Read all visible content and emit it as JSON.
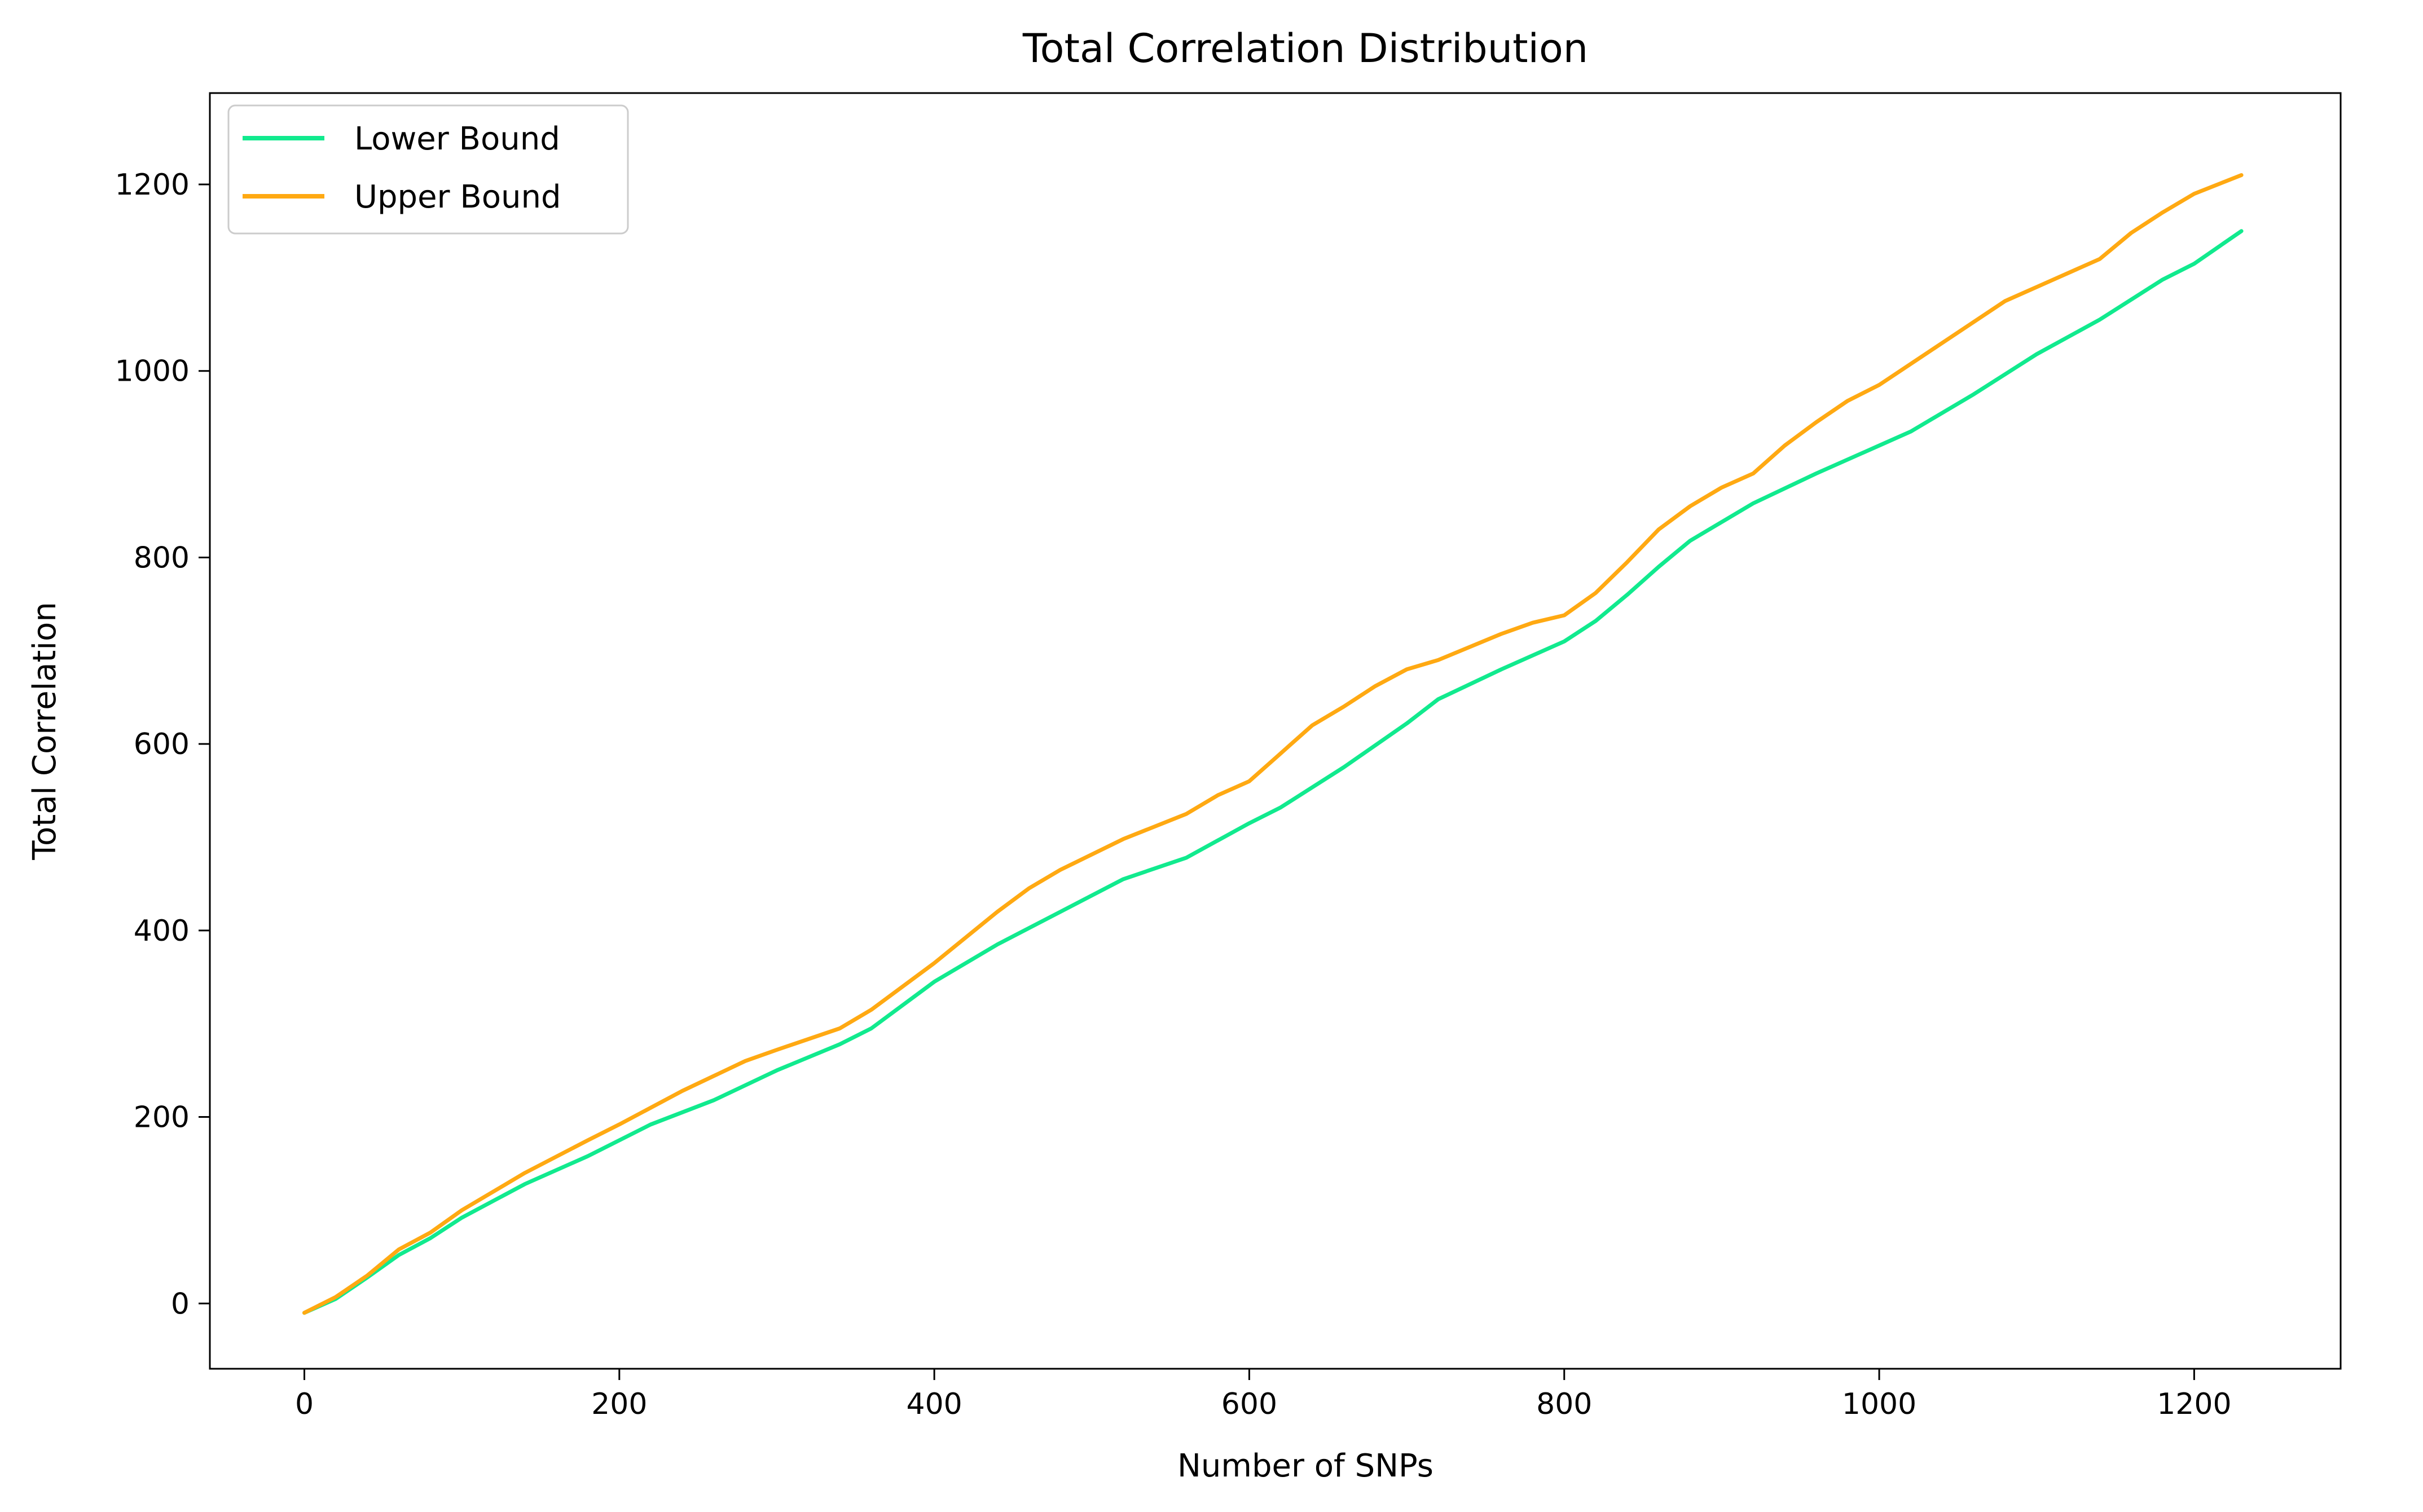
{
  "chart_data": {
    "type": "line",
    "title": "Total Correlation Distribution",
    "xlabel": "Number of SNPs",
    "ylabel": "Total Correlation",
    "xlim": [
      -60,
      1293
    ],
    "ylim": [
      -70,
      1298
    ],
    "xticks": [
      0,
      200,
      400,
      600,
      800,
      1000,
      1200
    ],
    "yticks": [
      0,
      200,
      400,
      600,
      800,
      1000,
      1200
    ],
    "grid": false,
    "legend_position": "top-left",
    "series": [
      {
        "name": "Lower Bound",
        "color": "#11ea8e",
        "x": [
          0,
          20,
          40,
          60,
          80,
          100,
          140,
          180,
          220,
          260,
          300,
          340,
          360,
          400,
          440,
          480,
          520,
          560,
          600,
          620,
          660,
          700,
          720,
          760,
          800,
          820,
          840,
          860,
          880,
          920,
          960,
          1000,
          1020,
          1060,
          1100,
          1140,
          1180,
          1200,
          1230
        ],
        "y": [
          -10,
          5,
          28,
          52,
          70,
          92,
          128,
          158,
          192,
          218,
          250,
          278,
          295,
          345,
          385,
          420,
          455,
          478,
          515,
          532,
          575,
          622,
          648,
          680,
          710,
          732,
          760,
          790,
          818,
          858,
          890,
          920,
          935,
          975,
          1018,
          1055,
          1098,
          1115,
          1150
        ]
      },
      {
        "name": "Upper Bound",
        "color": "#ffa912",
        "x": [
          0,
          20,
          40,
          60,
          80,
          100,
          140,
          180,
          200,
          240,
          280,
          300,
          340,
          360,
          400,
          440,
          460,
          480,
          520,
          560,
          580,
          600,
          620,
          640,
          660,
          680,
          700,
          720,
          760,
          780,
          800,
          820,
          840,
          860,
          880,
          900,
          920,
          940,
          960,
          980,
          1000,
          1040,
          1080,
          1100,
          1140,
          1160,
          1180,
          1200,
          1230
        ],
        "y": [
          -10,
          7,
          30,
          58,
          76,
          100,
          140,
          175,
          192,
          228,
          260,
          272,
          295,
          315,
          365,
          420,
          445,
          465,
          498,
          525,
          545,
          560,
          590,
          620,
          640,
          662,
          680,
          690,
          718,
          730,
          738,
          762,
          795,
          830,
          855,
          875,
          890,
          920,
          945,
          968,
          985,
          1030,
          1075,
          1090,
          1120,
          1148,
          1170,
          1190,
          1210
        ]
      }
    ]
  }
}
